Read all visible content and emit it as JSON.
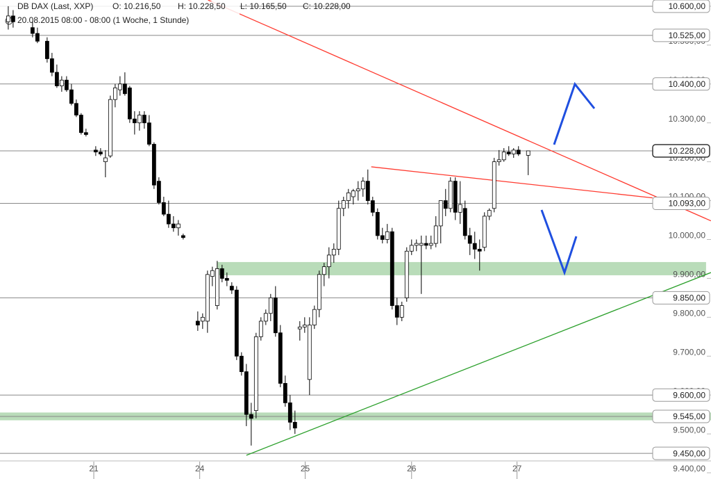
{
  "chart_data": {
    "type": "candlestick",
    "title": "DB DAX (Last, XXP)",
    "header_values": [
      "O: 10.216,50",
      "H: 10.228,50",
      "L: 10.165,50",
      "C: 10.228,00"
    ],
    "subtitle": "20.08.2015 08:00 - 08:00 (1 Woche, 1 Stunde)",
    "up_color": "#ffffff",
    "down_color": "#000000",
    "x": [
      1,
      2,
      6,
      7,
      9,
      10,
      11,
      12,
      13,
      14,
      15,
      16,
      17,
      19,
      20,
      21,
      22,
      23,
      24,
      25,
      26,
      27,
      28,
      29,
      30,
      31,
      32,
      33,
      34,
      35,
      36,
      37,
      40,
      41,
      42,
      43,
      44,
      45,
      46,
      47,
      48,
      49,
      50,
      51,
      52,
      53,
      54,
      55,
      56,
      57,
      58,
      59,
      60,
      61,
      62,
      63,
      64,
      65,
      66,
      67,
      68,
      69,
      70,
      71,
      72,
      73,
      74,
      75,
      76,
      77,
      78,
      79,
      80,
      81,
      82,
      83,
      84,
      85,
      86,
      87,
      88,
      89,
      90,
      91,
      92,
      93,
      94,
      95,
      96,
      97,
      98,
      99,
      100,
      101,
      102,
      103,
      104,
      105,
      106,
      108
    ],
    "open": [
      10560,
      10575,
      10545,
      10530,
      10510,
      10465,
      10430,
      10395,
      10410,
      10385,
      10350,
      10320,
      10275,
      10230,
      10225,
      10200,
      10215,
      10360,
      10385,
      10400,
      10390,
      10310,
      10300,
      10320,
      10300,
      10245,
      10150,
      10095,
      10065,
      10040,
      10030,
      10010,
      9790,
      9790,
      9790,
      9905,
      9830,
      9925,
      9900,
      9880,
      9870,
      9700,
      9660,
      9550,
      9560,
      9750,
      9790,
      9810,
      9850,
      9760,
      9630,
      9580,
      9530,
      9770,
      9775,
      9640,
      9780,
      9820,
      9910,
      9930,
      9960,
      9975,
      10080,
      10100,
      10110,
      10125,
      10130,
      10150,
      10100,
      10070,
      10010,
      10000,
      10020,
      9830,
      9800,
      9850,
      9970,
      9985,
      9985,
      9990,
      9985,
      9990,
      10035,
      10100,
      10080,
      10150,
      10070,
      10080,
      10010,
      9990,
      9975,
      9980,
      10060,
      10080,
      10200,
      10205,
      10225,
      10220,
      10230,
      10216.5
    ],
    "high": [
      10600,
      10590,
      10560,
      10545,
      10520,
      10480,
      10450,
      10420,
      10420,
      10400,
      10360,
      10325,
      10285,
      10240,
      10235,
      10230,
      10370,
      10400,
      10420,
      10430,
      10395,
      10330,
      10330,
      10330,
      10320,
      10250,
      10160,
      10110,
      10100,
      10060,
      10050,
      10015,
      9815,
      9810,
      9920,
      9930,
      9945,
      9935,
      9915,
      9890,
      9880,
      9710,
      9680,
      9580,
      9760,
      9800,
      9820,
      9860,
      9880,
      9780,
      9650,
      9600,
      9560,
      9790,
      9800,
      9800,
      9830,
      9920,
      9940,
      9980,
      9990,
      10100,
      10110,
      10130,
      10130,
      10150,
      10160,
      10180,
      10110,
      10080,
      10030,
      10040,
      10030,
      9850,
      9840,
      9980,
      10000,
      10000,
      10010,
      10010,
      10010,
      10060,
      10100,
      10130,
      10160,
      10160,
      10150,
      10100,
      10030,
      10020,
      10000,
      10070,
      10080,
      10210,
      10230,
      10235,
      10240,
      10235,
      10240,
      10228.5
    ],
    "low": [
      10540,
      10545,
      10520,
      10505,
      10455,
      10420,
      10390,
      10380,
      10380,
      10345,
      10315,
      10270,
      10265,
      10215,
      10215,
      10160,
      10210,
      10340,
      10370,
      10370,
      10300,
      10270,
      10280,
      10285,
      10240,
      10130,
      10090,
      10060,
      10030,
      10020,
      10010,
      10000,
      9765,
      9770,
      9760,
      9880,
      9820,
      9890,
      9880,
      9860,
      9690,
      9650,
      9520,
      9470,
      9540,
      9740,
      9780,
      9790,
      9750,
      9620,
      9570,
      9510,
      9500,
      9740,
      9760,
      9600,
      9770,
      9800,
      9880,
      9900,
      9940,
      9960,
      10060,
      10080,
      10090,
      10100,
      10110,
      10090,
      10060,
      10000,
      9990,
      9990,
      9820,
      9780,
      9790,
      9840,
      9960,
      9970,
      9860,
      9975,
      9975,
      9980,
      9990,
      10060,
      10070,
      10050,
      10040,
      10000,
      9960,
      9950,
      9920,
      9970,
      10050,
      10070,
      10190,
      10200,
      10215,
      10210,
      10215,
      10165.5
    ],
    "close": [
      10575,
      10560,
      10530,
      10510,
      10465,
      10430,
      10395,
      10410,
      10385,
      10350,
      10320,
      10275,
      10270,
      10225,
      10220,
      10210,
      10360,
      10390,
      10400,
      10375,
      10310,
      10300,
      10320,
      10300,
      10245,
      10140,
      10095,
      10065,
      10040,
      10030,
      10040,
      10005,
      9780,
      9800,
      9910,
      9920,
      9925,
      9900,
      9895,
      9870,
      9700,
      9660,
      9550,
      9540,
      9750,
      9790,
      9810,
      9850,
      9760,
      9630,
      9580,
      9530,
      9515,
      9775,
      9780,
      9780,
      9820,
      9910,
      9930,
      9960,
      9975,
      10080,
      10100,
      10120,
      10125,
      10130,
      10150,
      10100,
      10070,
      10010,
      10000,
      10020,
      9830,
      9800,
      9830,
      9970,
      9985,
      9990,
      9990,
      9985,
      9990,
      10035,
      10100,
      10080,
      10150,
      10070,
      10090,
      10010,
      9990,
      9975,
      9970,
      10060,
      10075,
      10200,
      10205,
      10225,
      10220,
      10230,
      10220,
      10228
    ],
    "xlim": [
      -0.7,
      132.9
    ],
    "xticks": [
      {
        "value": 18.6,
        "label": "21"
      },
      {
        "value": 40.4,
        "label": "24"
      },
      {
        "value": 62.1,
        "label": "25"
      },
      {
        "value": 84,
        "label": "26"
      },
      {
        "value": 105.7,
        "label": "27"
      }
    ],
    "ylim": [
      9384,
      10616
    ],
    "yticks": [
      {
        "value": 9400,
        "label": "9.400,00"
      },
      {
        "value": 9500,
        "label": "9.500,00"
      },
      {
        "value": 9600,
        "label": "9.600,00"
      },
      {
        "value": 9700,
        "label": "9.700,00"
      },
      {
        "value": 9800,
        "label": "9.800,00"
      },
      {
        "value": 9900,
        "label": "9.900,00"
      },
      {
        "value": 10000,
        "label": "10.000,00"
      },
      {
        "value": 10100,
        "label": "10.100,00"
      },
      {
        "value": 10200,
        "label": "10.200,00"
      },
      {
        "value": 10300,
        "label": "10.300,00"
      },
      {
        "value": 10400,
        "label": "10.400,00"
      },
      {
        "value": 10500,
        "label": "10.500,00"
      },
      {
        "value": 10600,
        "label": "10.600,00"
      }
    ],
    "levels": [
      {
        "value": 10600,
        "label": "10.600,00"
      },
      {
        "value": 10525,
        "label": "10.525,00"
      },
      {
        "value": 10400,
        "label": "10.400,00"
      },
      {
        "value": 10093,
        "label": "10.093,00"
      },
      {
        "value": 9850,
        "label": "9.850,00"
      },
      {
        "value": 9600,
        "label": "9.600,00"
      },
      {
        "value": 9545,
        "label": "9.545,00"
      },
      {
        "value": 9450,
        "label": "9.450,00"
      }
    ],
    "last_price": {
      "value": 10228,
      "label": "10.228,00"
    },
    "zones": [
      {
        "x": [
          44,
          144.6
        ],
        "y": [
          9908,
          9942
        ],
        "color": "#b9dcb9"
      },
      {
        "x": [
          -0.7,
          145.6
        ],
        "y": [
          9535,
          9555
        ],
        "color": "#b9dcb9"
      }
    ],
    "trendlines": [
      {
        "color": "#ff3b30",
        "x": [
          42.1,
          145.6
        ],
        "y": [
          10616,
          10048
        ]
      },
      {
        "color": "#ff3b30",
        "x": [
          75.7,
          133.6
        ],
        "y": [
          10187,
          10107
        ]
      },
      {
        "color": "#2ca02c",
        "x": [
          50,
          145.6
        ],
        "y": [
          9445,
          9915
        ]
      }
    ]
  }
}
